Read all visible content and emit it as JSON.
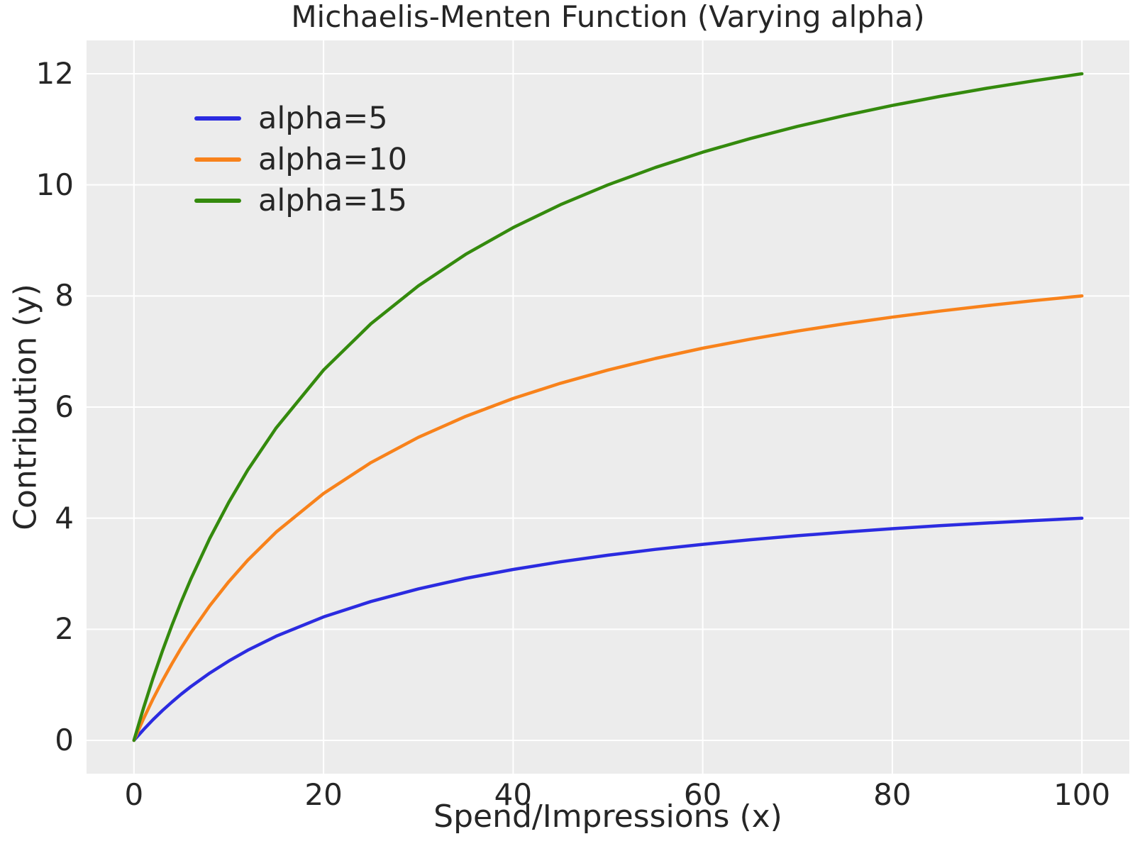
{
  "chart_data": {
    "type": "line",
    "title": "Michaelis-Menten Function (Varying alpha)",
    "xlabel": "Spend/Impressions (x)",
    "ylabel": "Contribution (y)",
    "x_ticks": [
      0,
      20,
      40,
      60,
      80,
      100
    ],
    "y_ticks": [
      0,
      2,
      4,
      6,
      8,
      10,
      12
    ],
    "xlim": [
      -5,
      105
    ],
    "ylim": [
      -0.6,
      12.6
    ],
    "grid": true,
    "grid_color": "#ffffff",
    "plot_bg_color": "#ececec",
    "text_color": "#262626",
    "legend_position": "upper-left",
    "x": [
      0,
      1,
      2,
      3,
      4,
      5,
      6,
      8,
      10,
      12,
      15,
      20,
      25,
      30,
      35,
      40,
      45,
      50,
      55,
      60,
      65,
      70,
      75,
      80,
      85,
      90,
      95,
      100
    ],
    "series": [
      {
        "name": "alpha=5",
        "color": "#2b2be0",
        "values": [
          0,
          0.192,
          0.37,
          0.536,
          0.69,
          0.833,
          0.968,
          1.212,
          1.429,
          1.622,
          1.875,
          2.222,
          2.5,
          2.727,
          2.917,
          3.077,
          3.214,
          3.333,
          3.438,
          3.529,
          3.611,
          3.684,
          3.75,
          3.81,
          3.864,
          3.913,
          3.958,
          4
        ]
      },
      {
        "name": "alpha=10",
        "color": "#f8821b",
        "values": [
          0,
          0.385,
          0.741,
          1.071,
          1.379,
          1.667,
          1.935,
          2.424,
          2.857,
          3.243,
          3.75,
          4.444,
          5,
          5.455,
          5.833,
          6.154,
          6.429,
          6.667,
          6.875,
          7.059,
          7.222,
          7.368,
          7.5,
          7.619,
          7.727,
          7.826,
          7.917,
          8
        ]
      },
      {
        "name": "alpha=15",
        "color": "#348a0d",
        "values": [
          0,
          0.577,
          1.111,
          1.607,
          2.069,
          2.5,
          2.903,
          3.636,
          4.286,
          4.865,
          5.625,
          6.667,
          7.5,
          8.182,
          8.75,
          9.231,
          9.643,
          10,
          10.312,
          10.588,
          10.833,
          11.053,
          11.25,
          11.429,
          11.591,
          11.739,
          11.875,
          12
        ]
      }
    ]
  }
}
